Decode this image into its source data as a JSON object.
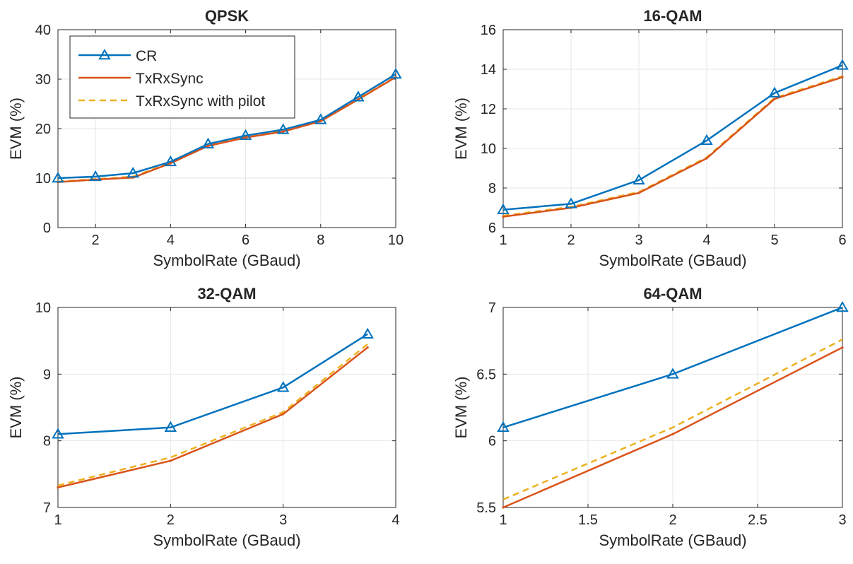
{
  "colors": {
    "CR": "#0072BD",
    "TxRxSync": "#D95319",
    "TxRxSync with pilot": "#EDB120",
    "grid": "#e6e6e6",
    "axis": "#262626"
  },
  "legend": {
    "placement": "top-left",
    "entries": [
      "CR",
      "TxRxSync",
      "TxRxSync with pilot"
    ]
  },
  "chart_data": [
    {
      "type": "line",
      "title": "QPSK",
      "xlabel": "SymbolRate (GBaud)",
      "ylabel": "EVM (%)",
      "xlim": [
        1,
        10
      ],
      "ylim": [
        0,
        40
      ],
      "xticks": [
        2,
        4,
        6,
        8,
        10
      ],
      "xtick_labels": [
        "2",
        "4",
        "6",
        "8",
        "10"
      ],
      "yticks": [
        0,
        10,
        20,
        30,
        40
      ],
      "ytick_labels": [
        "0",
        "10",
        "20",
        "30",
        "40"
      ],
      "grid": true,
      "legend": true,
      "x": [
        1,
        2,
        3,
        4,
        5,
        6,
        7,
        8,
        9,
        10
      ],
      "series": [
        {
          "name": "CR",
          "values": [
            10.0,
            10.3,
            11.0,
            13.3,
            16.9,
            18.6,
            19.8,
            21.8,
            26.4,
            31.0
          ]
        },
        {
          "name": "TxRxSync",
          "values": [
            9.2,
            9.7,
            10.1,
            13.0,
            16.5,
            18.2,
            19.4,
            21.5,
            25.9,
            30.4
          ]
        },
        {
          "name": "TxRxSync with pilot",
          "values": [
            9.3,
            9.8,
            10.3,
            13.1,
            16.6,
            18.3,
            19.5,
            21.6,
            26.0,
            30.5
          ]
        }
      ]
    },
    {
      "type": "line",
      "title": "16-QAM",
      "xlabel": "SymbolRate (GBaud)",
      "ylabel": "EVM (%)",
      "xlim": [
        1,
        6
      ],
      "ylim": [
        6,
        16
      ],
      "xticks": [
        1,
        2,
        3,
        4,
        5,
        6
      ],
      "xtick_labels": [
        "1",
        "2",
        "3",
        "4",
        "5",
        "6"
      ],
      "yticks": [
        6,
        8,
        10,
        12,
        14,
        16
      ],
      "ytick_labels": [
        "6",
        "8",
        "10",
        "12",
        "14",
        "16"
      ],
      "grid": true,
      "legend": false,
      "x": [
        1,
        2,
        3,
        4,
        5,
        6
      ],
      "series": [
        {
          "name": "CR",
          "values": [
            6.9,
            7.2,
            8.4,
            10.4,
            12.8,
            14.2
          ]
        },
        {
          "name": "TxRxSync",
          "values": [
            6.55,
            7.0,
            7.75,
            9.5,
            12.5,
            13.6
          ]
        },
        {
          "name": "TxRxSync with pilot",
          "values": [
            6.6,
            7.05,
            7.8,
            9.55,
            12.55,
            13.65
          ]
        }
      ]
    },
    {
      "type": "line",
      "title": "32-QAM",
      "xlabel": "SymbolRate (GBaud)",
      "ylabel": "EVM (%)",
      "xlim": [
        1,
        4
      ],
      "ylim": [
        7,
        10
      ],
      "xticks": [
        1,
        2,
        3,
        4
      ],
      "xtick_labels": [
        "1",
        "2",
        "3",
        "4"
      ],
      "yticks": [
        7,
        8,
        9,
        10
      ],
      "ytick_labels": [
        "7",
        "8",
        "9",
        "10"
      ],
      "grid": true,
      "legend": false,
      "x": [
        1,
        2,
        3,
        3.75
      ],
      "series": [
        {
          "name": "CR",
          "values": [
            8.1,
            8.2,
            8.8,
            9.6
          ]
        },
        {
          "name": "TxRxSync",
          "values": [
            7.3,
            7.7,
            8.4,
            9.4
          ]
        },
        {
          "name": "TxRxSync with pilot",
          "values": [
            7.33,
            7.75,
            8.43,
            9.45
          ]
        }
      ]
    },
    {
      "type": "line",
      "title": "64-QAM",
      "xlabel": "SymbolRate (GBaud)",
      "ylabel": "EVM (%)",
      "xlim": [
        1,
        3
      ],
      "ylim": [
        5.5,
        7
      ],
      "xticks": [
        1,
        1.5,
        2,
        2.5,
        3
      ],
      "xtick_labels": [
        "1",
        "1.5",
        "2",
        "2.5",
        "3"
      ],
      "yticks": [
        5.5,
        6,
        6.5,
        7
      ],
      "ytick_labels": [
        "5.5",
        "6",
        "6.5",
        "7"
      ],
      "grid": true,
      "legend": false,
      "x": [
        1,
        2,
        3
      ],
      "series": [
        {
          "name": "CR",
          "values": [
            6.1,
            6.5,
            7.0
          ]
        },
        {
          "name": "TxRxSync",
          "values": [
            5.5,
            6.05,
            6.7
          ]
        },
        {
          "name": "TxRxSync with pilot",
          "values": [
            5.56,
            6.1,
            6.76
          ]
        }
      ]
    }
  ]
}
